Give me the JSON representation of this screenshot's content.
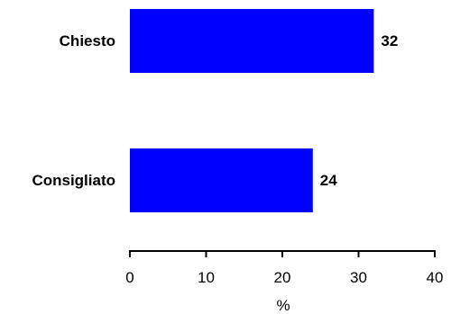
{
  "chart_data": {
    "type": "bar",
    "orientation": "horizontal",
    "categories": [
      "Chiesto",
      "Consigliato"
    ],
    "values": [
      32,
      24
    ],
    "data_labels": [
      "32",
      "24"
    ],
    "xlabel": "%",
    "ylabel": "",
    "title": "",
    "xlim": [
      0,
      40
    ],
    "xticks": [
      0,
      10,
      20,
      30,
      40
    ],
    "grid": false,
    "legend": "none",
    "bar_color": "#0000ff"
  }
}
